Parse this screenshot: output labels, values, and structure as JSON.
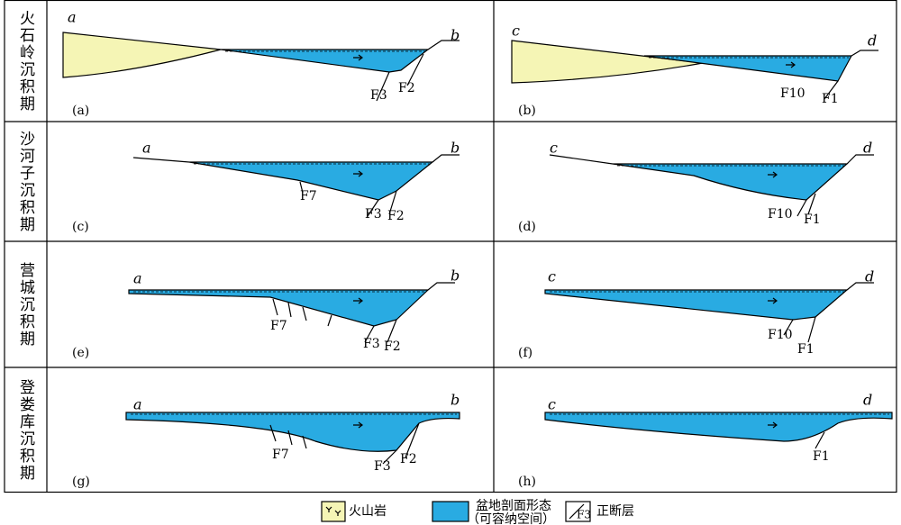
{
  "rows": [
    {
      "period": "火石岭沉积期",
      "panels": [
        {
          "id": "(a)",
          "left": "a",
          "right": "b",
          "faults": [
            "F3",
            "F2"
          ]
        },
        {
          "id": "(b)",
          "left": "c",
          "right": "d",
          "faults": [
            "F10",
            "F1"
          ]
        }
      ]
    },
    {
      "period": "沙河子沉积期",
      "panels": [
        {
          "id": "(c)",
          "left": "a",
          "right": "b",
          "faults": [
            "F7",
            "F3",
            "F2"
          ]
        },
        {
          "id": "(d)",
          "left": "c",
          "right": "d",
          "faults": [
            "F10",
            "F1"
          ]
        }
      ]
    },
    {
      "period": "营城沉积期",
      "panels": [
        {
          "id": "(e)",
          "left": "a",
          "right": "b",
          "faults": [
            "F7",
            "F3",
            "F2"
          ]
        },
        {
          "id": "(f)",
          "left": "c",
          "right": "d",
          "faults": [
            "F10",
            "F1"
          ]
        }
      ]
    },
    {
      "period": "登娄库沉积期",
      "panels": [
        {
          "id": "(g)",
          "left": "a",
          "right": "b",
          "faults": [
            "F7",
            "F3",
            "F2"
          ]
        },
        {
          "id": "(h)",
          "left": "c",
          "right": "d",
          "faults": [
            "F1"
          ]
        }
      ]
    }
  ],
  "legend": {
    "volcanic": "火山岩",
    "basin": [
      "盆地剖面形态",
      "（可容纳空间）"
    ],
    "fault_icon": "F3",
    "fault": "正断层"
  }
}
